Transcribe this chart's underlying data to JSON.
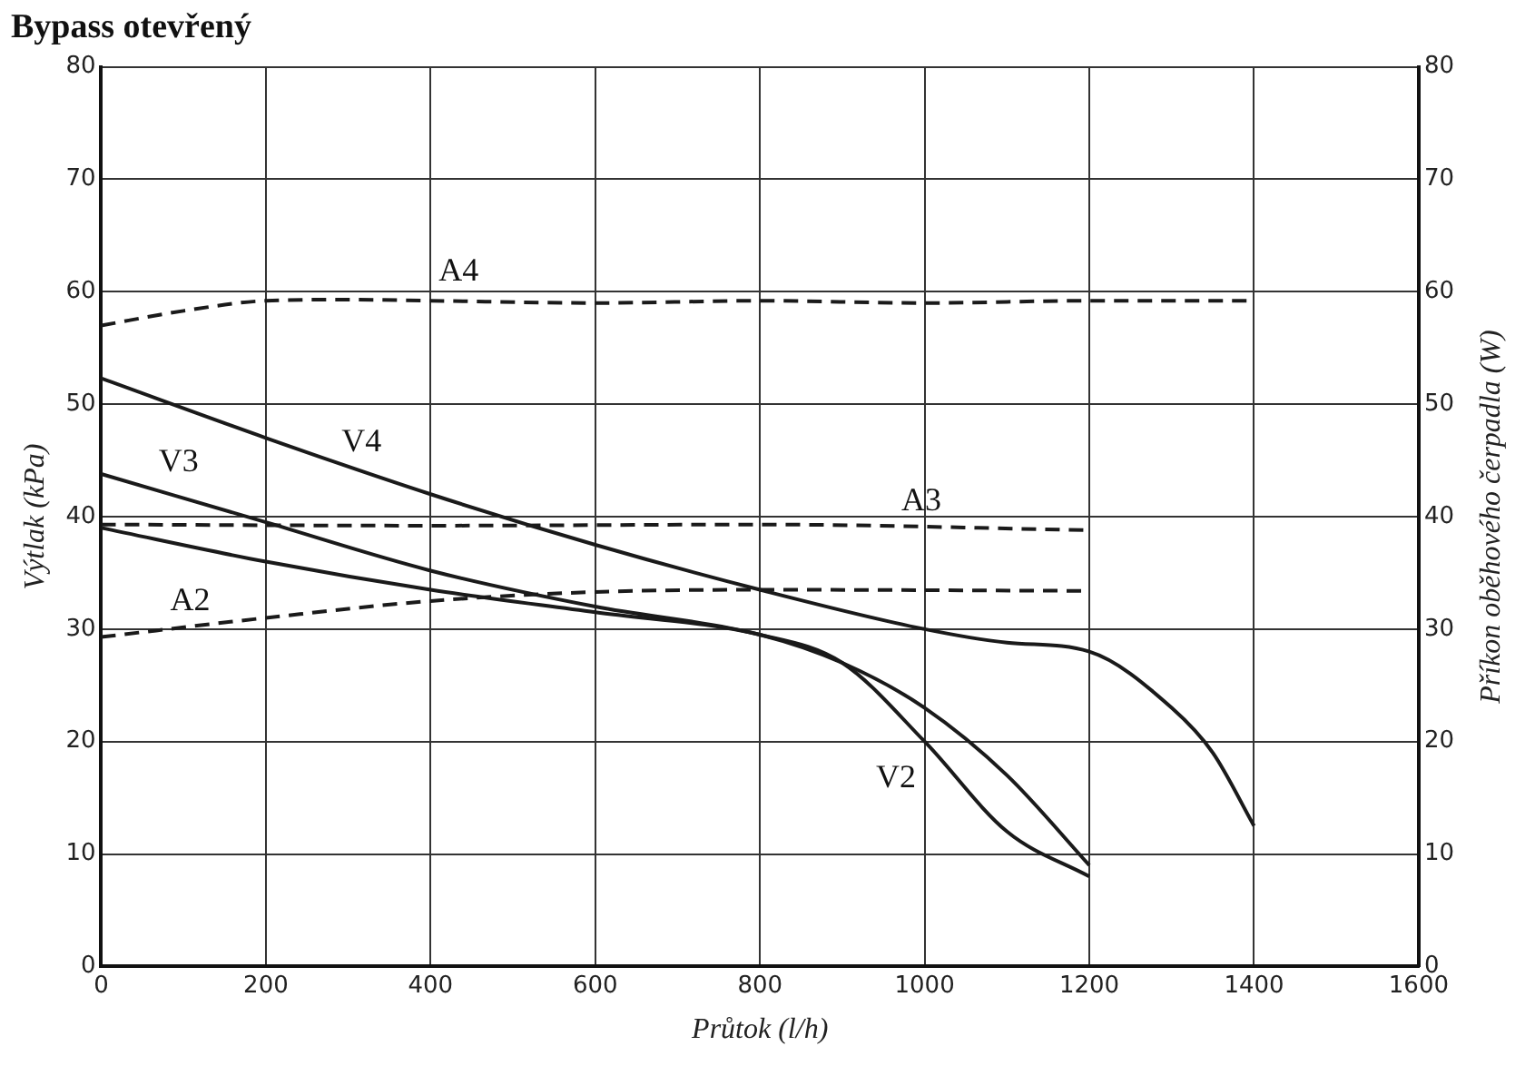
{
  "chart_data": {
    "type": "line",
    "title": "Bypass otevřený",
    "xlabel": "Průtok (l/h)",
    "ylabel": "Výtlak (kPa)",
    "y2label": "Příkon oběhového čerpadla (W)",
    "xlim": [
      0,
      1600
    ],
    "xticks": [
      0,
      200,
      400,
      600,
      800,
      1000,
      1200,
      1400,
      1600
    ],
    "ylim": [
      0,
      80
    ],
    "yticks": [
      0,
      10,
      20,
      30,
      40,
      50,
      60,
      70,
      80
    ],
    "y2lim": [
      0,
      80
    ],
    "y2ticks": [
      0,
      10,
      20,
      30,
      40,
      50,
      60,
      70,
      80
    ],
    "grid": true,
    "legend": false,
    "marker": "none",
    "series": [
      {
        "name": "V4",
        "color": "#1a1a1a",
        "line_style": "solid",
        "x": [
          0,
          200,
          400,
          600,
          800,
          1000,
          1100,
          1200,
          1300,
          1350,
          1400
        ],
        "values": [
          52.3,
          47,
          42,
          37.5,
          33.5,
          30,
          28.8,
          28,
          23,
          19,
          12.5
        ]
      },
      {
        "name": "V3",
        "color": "#1a1a1a",
        "line_style": "solid",
        "x": [
          0,
          200,
          400,
          600,
          800,
          900,
          1000,
          1100,
          1200
        ],
        "values": [
          43.8,
          39.5,
          35.2,
          32,
          29.5,
          27,
          23,
          17,
          9
        ]
      },
      {
        "name": "V2",
        "color": "#1a1a1a",
        "line_style": "solid",
        "x": [
          0,
          200,
          400,
          600,
          800,
          900,
          1000,
          1100,
          1200
        ],
        "values": [
          39,
          36,
          33.5,
          31.5,
          29.5,
          27,
          20,
          12,
          8
        ]
      },
      {
        "name": "A4",
        "color": "#1a1a1a",
        "line_style": "dashed",
        "axis": "y2",
        "x": [
          0,
          100,
          200,
          300,
          400,
          600,
          800,
          1000,
          1200,
          1400
        ],
        "values": [
          57,
          58.3,
          59.2,
          59.3,
          59.2,
          59,
          59.2,
          59,
          59.2,
          59.2
        ]
      },
      {
        "name": "A3",
        "color": "#1a1a1a",
        "line_style": "dashed",
        "axis": "y2",
        "x": [
          0,
          400,
          800,
          1200
        ],
        "values": [
          39.3,
          39.2,
          39.3,
          38.8
        ]
      },
      {
        "name": "A2",
        "color": "#1a1a1a",
        "line_style": "dashed",
        "axis": "y2",
        "x": [
          0,
          200,
          400,
          600,
          800,
          1200
        ],
        "values": [
          29.3,
          31,
          32.5,
          33.3,
          33.5,
          33.4
        ]
      }
    ]
  }
}
